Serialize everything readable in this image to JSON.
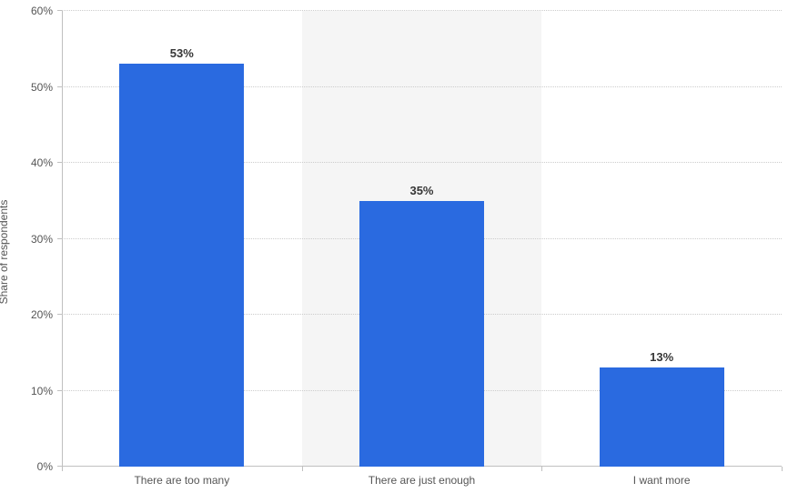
{
  "chart": {
    "type": "bar",
    "background_color": "#ffffff",
    "alt_band_color": "#f5f5f5",
    "grid_color": "#cccccc",
    "axis_color": "#c0c0c0",
    "bar_color": "#2a6ae0",
    "bar_width_ratio": 0.52,
    "label_font_size": 12,
    "value_label_font_size": 13,
    "value_label_font_weight": 700,
    "text_color": "#555555",
    "value_label_color": "#363636",
    "y": {
      "title": "Share of respondents",
      "min": 0,
      "max": 60,
      "tick_step": 10,
      "suffix": "%",
      "ticks": [
        {
          "v": 0,
          "label": "0%"
        },
        {
          "v": 10,
          "label": "10%"
        },
        {
          "v": 20,
          "label": "20%"
        },
        {
          "v": 30,
          "label": "30%"
        },
        {
          "v": 40,
          "label": "40%"
        },
        {
          "v": 50,
          "label": "50%"
        },
        {
          "v": 60,
          "label": "60%"
        }
      ]
    },
    "categories": [
      {
        "label": "There are too many",
        "value": 53,
        "value_label": "53%"
      },
      {
        "label": "There are just enough",
        "value": 35,
        "value_label": "35%"
      },
      {
        "label": "I want more",
        "value": 13,
        "value_label": "13%"
      }
    ]
  }
}
